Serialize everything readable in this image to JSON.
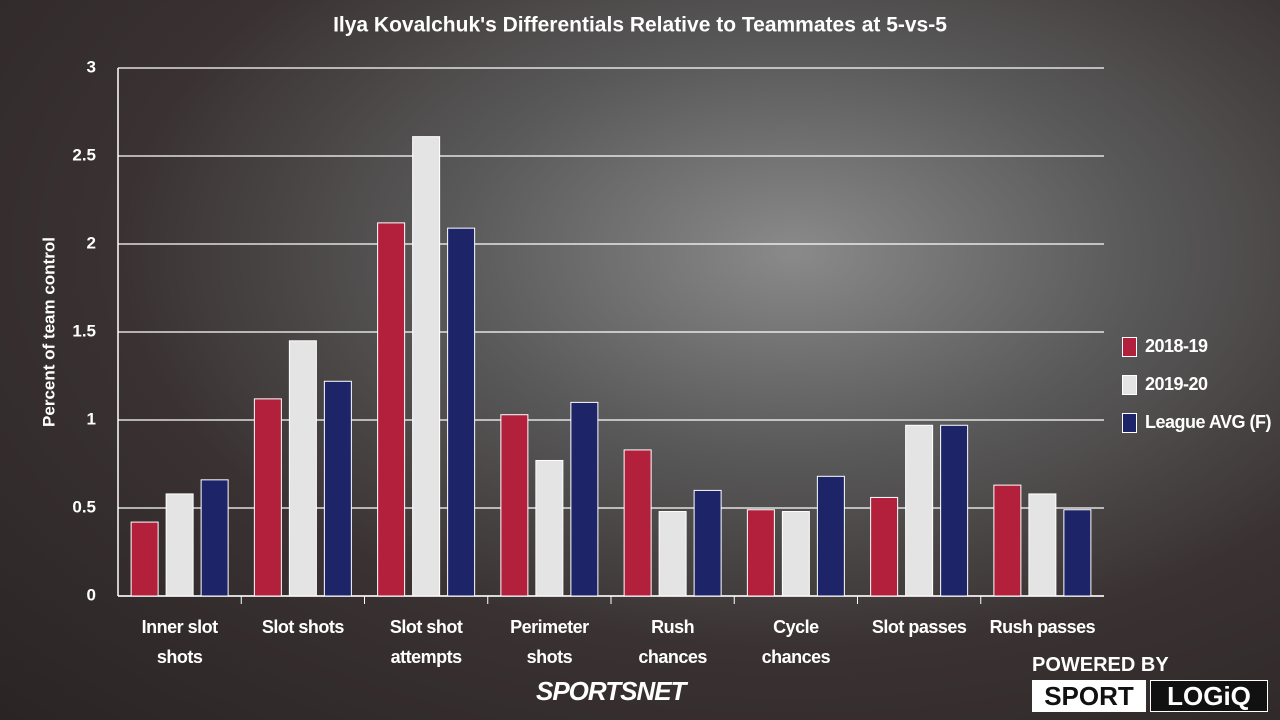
{
  "chart_data": {
    "type": "bar",
    "title": "Ilya Kovalchuk's Differentials Relative to Teammates at 5-vs-5",
    "y_label": "Percent of team control",
    "categories": [
      "Inner slot shots",
      "Slot shots",
      "Slot shot attempts",
      "Perimeter shots",
      "Rush chances",
      "Cycle chances",
      "Slot passes",
      "Rush passes"
    ],
    "series": [
      {
        "name": "2018-19",
        "color": "#b3203c",
        "values": [
          0.42,
          1.12,
          2.12,
          1.03,
          0.83,
          0.49,
          0.56,
          0.63
        ]
      },
      {
        "name": "2019-20",
        "color": "#e4e4e4",
        "values": [
          0.58,
          1.45,
          2.61,
          0.77,
          0.48,
          0.48,
          0.97,
          0.58
        ]
      },
      {
        "name": "League AVG (F)",
        "color": "#1d2468",
        "values": [
          0.66,
          1.22,
          2.09,
          1.1,
          0.6,
          0.68,
          0.97,
          0.49
        ]
      }
    ],
    "ylim": [
      0,
      3
    ],
    "yticks": [
      0,
      0.5,
      1,
      1.5,
      2,
      2.5,
      3
    ],
    "grid": true,
    "legend": "right"
  },
  "branding": {
    "network": "SPORTSNET",
    "powered_by": "POWERED BY",
    "sport": "SPORT",
    "logiq": "LOGiQ"
  }
}
